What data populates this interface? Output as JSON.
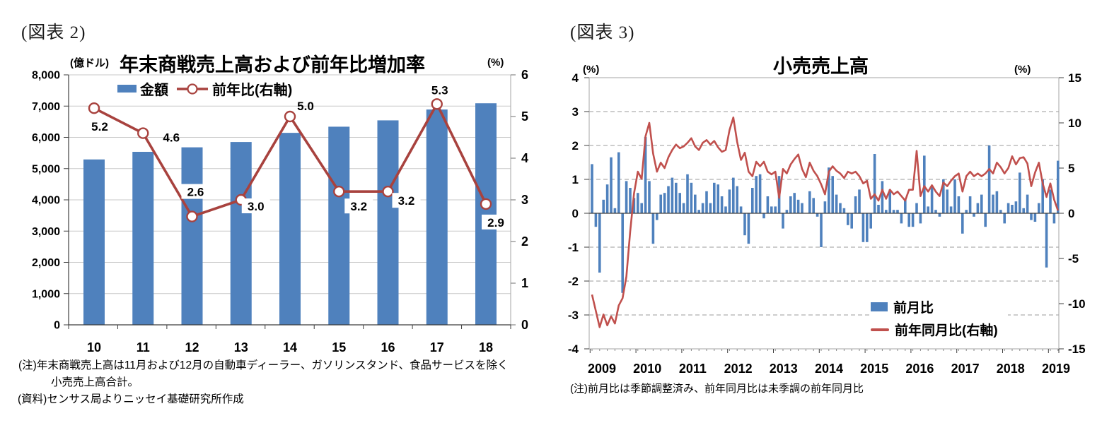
{
  "chart_data": [
    {
      "type": "bar+line",
      "figure_label": "(図表 2)",
      "title": "年末商戦売上高および前年比増加率",
      "left_axis_title": "(億ドル)",
      "right_axis_title": "(%)",
      "categories": [
        "10",
        "11",
        "12",
        "13",
        "14",
        "15",
        "16",
        "17",
        "18"
      ],
      "series": [
        {
          "name": "金額",
          "type": "bar",
          "axis": "left",
          "color": "#4F81BD",
          "values": [
            5293,
            5537,
            5681,
            5851,
            6144,
            6341,
            6544,
            6891,
            7091
          ]
        },
        {
          "name": "前年比(右軸)",
          "type": "line",
          "axis": "right",
          "color": "#A8423E",
          "values": [
            5.2,
            4.6,
            2.6,
            3.0,
            5.0,
            3.2,
            3.2,
            5.3,
            2.9
          ],
          "point_labels": [
            "5.2",
            "4.6",
            "2.6",
            "3.0",
            "5.0",
            "3.2",
            "3.2",
            "5.3",
            "2.9"
          ]
        }
      ],
      "left_axis": {
        "min": 0,
        "max": 8000,
        "step": 1000,
        "tick_labels": [
          "8,000",
          "7,000",
          "6,000",
          "5,000",
          "4,000",
          "3,000",
          "2,000",
          "1,000",
          "0"
        ]
      },
      "right_axis": {
        "min": 0,
        "max": 6,
        "step": 1,
        "tick_labels": [
          "6",
          "5",
          "4",
          "3",
          "2",
          "1",
          "0"
        ]
      },
      "legend_position": "top-inside",
      "grid": "solid-horizontal",
      "notes": [
        "(注)年末商戦売上高は11月および12月の自動車ディーラー、ガソリンスタンド、食品サービスを除く",
        "小売売上高合計。",
        "(資料)センサス局よりニッセイ基礎研究所作成"
      ]
    },
    {
      "type": "bar+line",
      "figure_label": "(図表 3)",
      "title": "小売売上高",
      "left_axis_title": "(%)",
      "right_axis_title": "(%)",
      "x_start": "2009-01",
      "x_end": "2019-03",
      "x_labels": [
        "2009",
        "2010",
        "2011",
        "2012",
        "2013",
        "2014",
        "2015",
        "2016",
        "2017",
        "2018",
        "2019"
      ],
      "series": [
        {
          "name": "前月比",
          "type": "bar",
          "axis": "left",
          "color": "#4F81BD",
          "values": [
            1.45,
            -0.4,
            -1.75,
            0.4,
            0.85,
            1.65,
            0.15,
            1.8,
            -2.35,
            0.95,
            0.75,
            0.45,
            0.6,
            0.3,
            2.25,
            0.95,
            -0.9,
            -0.2,
            0.55,
            0.6,
            0.8,
            1.05,
            0.9,
            0.6,
            0.3,
            1.15,
            0.9,
            0.55,
            0.1,
            0.3,
            0.65,
            0.3,
            0.9,
            0.85,
            0.5,
            0.2,
            0.7,
            1.05,
            0.8,
            0.2,
            -0.65,
            -0.9,
            0.75,
            1.1,
            1.15,
            -0.15,
            0.5,
            0.2,
            0.2,
            1.1,
            -0.45,
            0.1,
            0.5,
            0.6,
            0.4,
            0.3,
            0.0,
            0.65,
            0.45,
            -0.1,
            -1.0,
            0.35,
            1.35,
            1.1,
            0.55,
            0.3,
            0.15,
            -0.35,
            -0.45,
            0.5,
            0.7,
            -0.85,
            -0.85,
            -0.45,
            1.75,
            0.25,
            0.95,
            0.1,
            0.7,
            0.1,
            0.1,
            -0.3,
            0.4,
            -0.4,
            -0.4,
            0.3,
            -0.3,
            1.7,
            0.2,
            0.8,
            0.1,
            -0.1,
            1.0,
            0.7,
            0.2,
            1.0,
            0.5,
            -0.6,
            0.1,
            0.5,
            -0.1,
            0.3,
            0.55,
            -0.4,
            2.0,
            0.55,
            0.65,
            0.1,
            -0.3,
            0.3,
            0.25,
            0.35,
            1.2,
            0.15,
            0.55,
            -0.2,
            -0.25,
            0.3,
            1.0,
            -1.6,
            0.7,
            -0.3,
            1.55
          ]
        },
        {
          "name": "前年同月比(右軸)",
          "type": "line",
          "axis": "right",
          "color": "#C0504D",
          "values": [
            -9.0,
            -10.8,
            -12.6,
            -11.2,
            -12.4,
            -11.4,
            -12.2,
            -10.2,
            -9.4,
            -7.0,
            -2.0,
            2.2,
            4.6,
            3.8,
            8.5,
            10.0,
            6.6,
            4.6,
            5.6,
            5.0,
            6.2,
            7.0,
            7.6,
            7.2,
            7.4,
            7.8,
            8.3,
            7.4,
            7.0,
            7.8,
            8.1,
            7.6,
            8.0,
            7.3,
            6.8,
            7.0,
            9.2,
            10.6,
            7.9,
            5.9,
            6.7,
            4.6,
            4.1,
            5.7,
            5.2,
            5.7,
            4.6,
            4.3,
            4.6,
            1.7,
            4.9,
            4.4,
            5.4,
            6.0,
            6.5,
            4.9,
            4.0,
            5.6,
            4.7,
            4.1,
            3.2,
            2.1,
            4.6,
            5.2,
            4.7,
            4.4,
            3.9,
            4.6,
            4.4,
            4.6,
            4.1,
            3.3,
            3.6,
            1.6,
            2.1,
            1.4,
            2.6,
            1.6,
            2.6,
            2.1,
            2.4,
            1.9,
            1.4,
            2.6,
            2.6,
            6.9,
            1.9,
            3.0,
            2.4,
            3.1,
            2.4,
            1.9,
            3.4,
            3.0,
            3.6,
            4.1,
            4.4,
            2.4,
            4.1,
            4.6,
            4.1,
            4.4,
            4.1,
            4.4,
            4.9,
            4.4,
            5.6,
            5.1,
            4.4,
            5.0,
            6.3,
            5.4,
            6.1,
            6.2,
            5.5,
            3.0,
            4.5,
            5.6,
            3.3,
            1.8,
            3.3,
            1.5,
            0.3
          ]
        }
      ],
      "left_axis": {
        "min": -4,
        "max": 4,
        "step": 1,
        "tick_labels": [
          "4",
          "3",
          "2",
          "1",
          "0",
          "-1",
          "-2",
          "-3",
          "-4"
        ]
      },
      "right_axis": {
        "min": -15,
        "max": 15,
        "step": 5,
        "tick_labels": [
          "15",
          "10",
          "5",
          "0",
          "-5",
          "-10",
          "-15"
        ]
      },
      "legend_position": "inside-lower-right",
      "grid": "dashed-horizontal",
      "note": "(注)前月比は季節調整済み、前年同月比は未季調の前年同月比"
    }
  ]
}
